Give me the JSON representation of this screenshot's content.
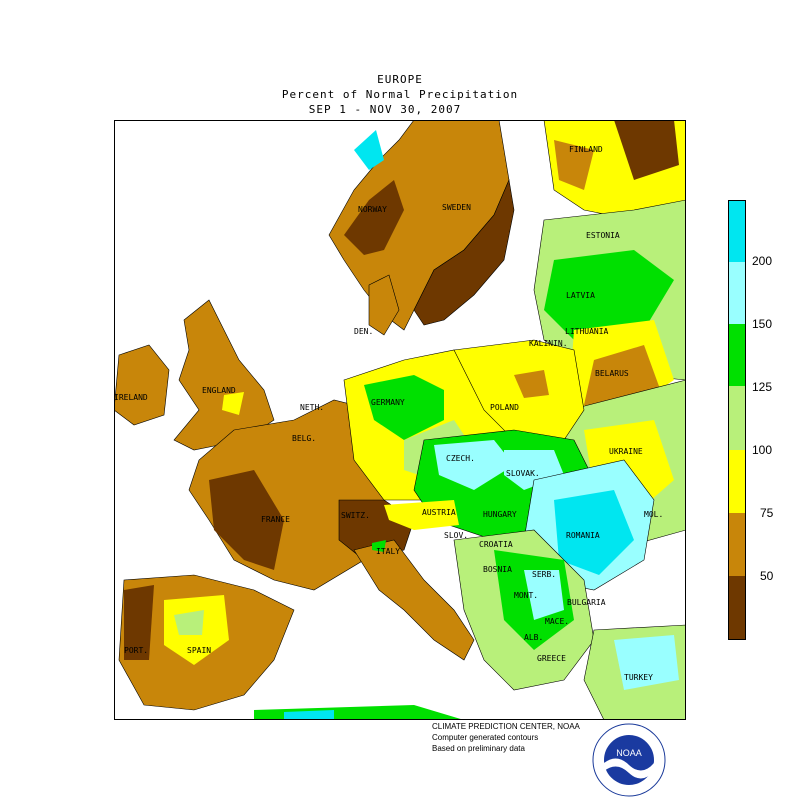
{
  "header": {
    "title": "EUROPE",
    "subtitle": "Percent of Normal Precipitation",
    "period": "SEP  1 - NOV 30, 2007"
  },
  "legend": {
    "ticks": [
      "200",
      "150",
      "125",
      "100",
      "75",
      "50"
    ],
    "colors": [
      "#00e6f0",
      "#99ffff",
      "#00e000",
      "#b8f07a",
      "#ffff00",
      "#c8860a",
      "#6e3800"
    ]
  },
  "countries": [
    {
      "key": "finland",
      "label": "FINLAND"
    },
    {
      "key": "estonia",
      "label": "ESTONIA"
    },
    {
      "key": "norway",
      "label": "NORWAY"
    },
    {
      "key": "sweden",
      "label": "SWEDEN"
    },
    {
      "key": "latvia",
      "label": "LATVIA"
    },
    {
      "key": "lithuania",
      "label": "LITHUANIA"
    },
    {
      "key": "den",
      "label": "DEN."
    },
    {
      "key": "kalinin",
      "label": "KALININ."
    },
    {
      "key": "belarus",
      "label": "BELARUS"
    },
    {
      "key": "ireland",
      "label": "IRELAND"
    },
    {
      "key": "england",
      "label": "ENGLAND"
    },
    {
      "key": "germany",
      "label": "GERMANY"
    },
    {
      "key": "poland",
      "label": "POLAND"
    },
    {
      "key": "neth",
      "label": "NETH."
    },
    {
      "key": "belg",
      "label": "BELG."
    },
    {
      "key": "czech",
      "label": "CZECH."
    },
    {
      "key": "slovak",
      "label": "SLOVAK."
    },
    {
      "key": "ukraine",
      "label": "UKRAINE"
    },
    {
      "key": "france",
      "label": "FRANCE"
    },
    {
      "key": "switz",
      "label": "SWITZ."
    },
    {
      "key": "austria",
      "label": "AUSTRIA"
    },
    {
      "key": "hungary",
      "label": "HUNGARY"
    },
    {
      "key": "mol",
      "label": "MOL."
    },
    {
      "key": "slov",
      "label": "SLOV."
    },
    {
      "key": "croatia",
      "label": "CROATIA"
    },
    {
      "key": "romania",
      "label": "ROMANIA"
    },
    {
      "key": "italy",
      "label": "ITALY"
    },
    {
      "key": "bosnia",
      "label": "BOSNIA"
    },
    {
      "key": "serb",
      "label": "SERB."
    },
    {
      "key": "mont",
      "label": "MONT."
    },
    {
      "key": "bulgaria",
      "label": "BULGARIA"
    },
    {
      "key": "mace",
      "label": "MACE."
    },
    {
      "key": "alb",
      "label": "ALB."
    },
    {
      "key": "port",
      "label": "PORT."
    },
    {
      "key": "spain",
      "label": "SPAIN"
    },
    {
      "key": "greece",
      "label": "GREECE"
    },
    {
      "key": "turkey",
      "label": "TURKEY"
    }
  ],
  "credits": {
    "line1": "CLIMATE PREDICTION CENTER, NOAA",
    "line2": "Computer generated contours",
    "line3": "Based on preliminary data"
  },
  "logo": {
    "text": "NOAA"
  }
}
